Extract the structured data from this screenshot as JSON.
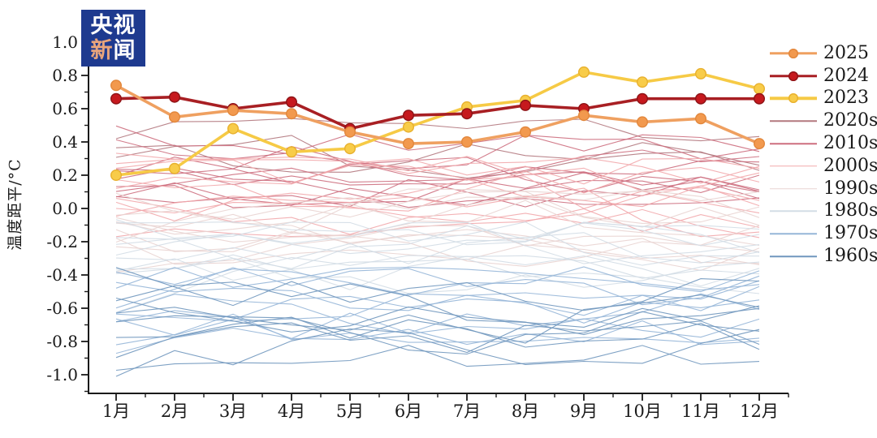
{
  "logo": {
    "line1": "央视",
    "line2a": "新",
    "line2b": "闻",
    "bg_color": "#1e3a8f",
    "accent_color": "#e9a57c",
    "text_color": "#ffffff"
  },
  "chart_data": {
    "type": "line",
    "title": "",
    "xlabel": "",
    "ylabel": "温度距平/°C",
    "categories": [
      "1月",
      "2月",
      "3月",
      "4月",
      "5月",
      "6月",
      "7月",
      "8月",
      "9月",
      "10月",
      "11月",
      "12月"
    ],
    "ytick_labels": [
      "1.0",
      "0.8",
      "0.6",
      "0.4",
      "0.2",
      "0.0",
      "-0.2",
      "-0.4",
      "-0.6",
      "-0.8",
      "-1.0"
    ],
    "ylim": [
      -1.1,
      1.05
    ],
    "grid": false,
    "legend_position": "right-outside",
    "axis_color": "#1a1a1a",
    "series": [
      {
        "name": "2025",
        "color": "#efa060",
        "marker_fill": "#f2994e",
        "marker_edge": "#e2873c",
        "values": [
          0.74,
          0.55,
          0.59,
          0.57,
          0.46,
          0.39,
          0.4,
          0.46,
          0.56,
          0.52,
          0.54,
          0.39
        ]
      },
      {
        "name": "2024",
        "color": "#a81f23",
        "marker_fill": "#c6191e",
        "marker_edge": "#8c1316",
        "values": [
          0.66,
          0.67,
          0.6,
          0.64,
          0.48,
          0.56,
          0.57,
          0.62,
          0.6,
          0.66,
          0.66,
          0.66
        ]
      },
      {
        "name": "2023",
        "color": "#f6ca45",
        "marker_fill": "#f8cc49",
        "marker_edge": "#e8b02e",
        "values": [
          0.2,
          0.24,
          0.48,
          0.34,
          0.36,
          0.49,
          0.61,
          0.65,
          0.82,
          0.76,
          0.81,
          0.72
        ]
      }
    ],
    "background_series": [
      {
        "name": "2020s",
        "color": "#b3787e",
        "count": 3,
        "range": [
          0.18,
          0.55
        ]
      },
      {
        "name": "2010s",
        "color": "#cd6e7e",
        "count": 10,
        "range": [
          0.0,
          0.45
        ]
      },
      {
        "name": "2000s",
        "color": "#f2a9ac",
        "count": 10,
        "range": [
          -0.18,
          0.32
        ]
      },
      {
        "name": "1990s",
        "color": "#e9d4d2",
        "count": 10,
        "range": [
          -0.38,
          0.12
        ]
      },
      {
        "name": "1980s",
        "color": "#d3dde6",
        "count": 10,
        "range": [
          -0.52,
          -0.08
        ]
      },
      {
        "name": "1970s",
        "color": "#96b6d8",
        "count": 10,
        "range": [
          -0.82,
          -0.35
        ]
      },
      {
        "name": "1960s",
        "color": "#7097be",
        "count": 9,
        "range": [
          -0.95,
          -0.42
        ]
      }
    ]
  },
  "legend": {
    "items": [
      "2025",
      "2024",
      "2023",
      "2020s",
      "2010s",
      "2000s",
      "1990s",
      "1980s",
      "1970s",
      "1960s"
    ]
  }
}
